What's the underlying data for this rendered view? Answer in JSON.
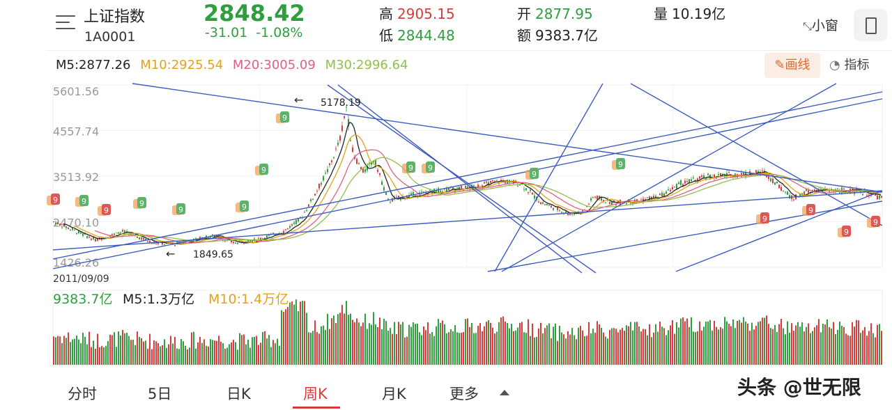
{
  "header": {
    "name": "上证指数",
    "code": "1A0001",
    "price": "2848.42",
    "change": "-31.01",
    "change_pct": "-1.08%",
    "high_label": "高",
    "high": "2905.15",
    "low_label": "低",
    "low": "2844.48",
    "open_label": "开",
    "open": "2877.95",
    "amount_label": "额",
    "amount": "9383.7亿",
    "volume_label": "量",
    "volume": "10.19亿",
    "float_window": "小窗",
    "float_icon": "shrink-arrows-icon",
    "phone_icon": "phone-icon",
    "menu_icon": "menu-icon"
  },
  "ma": {
    "m5": "M5:2877.26",
    "m10": "M10:2925.54",
    "m20": "M20:3005.09",
    "m30": "M30:2996.64",
    "colors": {
      "m5": "#222222",
      "m10": "#e3a21a",
      "m20": "#e0607e",
      "m30": "#8fc14a"
    }
  },
  "toolbar": {
    "draw": "画线",
    "indicator": "指标",
    "draw_icon": "pencil-icon",
    "indicator_icon": "gauge-icon"
  },
  "price_axis": [
    "5601.56",
    "4557.74",
    "3513.92",
    "2470.10",
    "1426.26"
  ],
  "start_date": "2011/09/09",
  "annotations": {
    "high": "5178.19",
    "low": "1849.65"
  },
  "volume_panel": {
    "amount": "9383.7亿",
    "m5": "M5:1.3万亿",
    "m10": "M10:1.4万亿"
  },
  "tabs": [
    "分时",
    "5日",
    "日K",
    "周K",
    "月K",
    "更多"
  ],
  "active_tab": "周K",
  "watermark": "头条 @世无限",
  "colors": {
    "up": "#d93b3b",
    "down": "#2e9e3e",
    "trendline": "#3a5bbf",
    "accent": "#e2672a"
  }
}
